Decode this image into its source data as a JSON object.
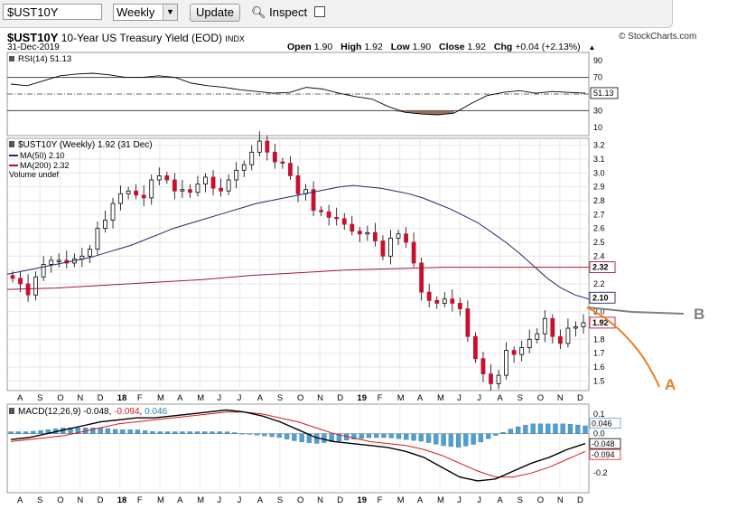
{
  "toolbar": {
    "symbol_value": "$UST10Y",
    "period_selected": "Weekly",
    "update_label": "Update",
    "inspect_label": "Inspect"
  },
  "header": {
    "symbol": "$UST10Y",
    "description": "10-Year US Treasury Yield (EOD)",
    "exchange": "INDX",
    "date": "31-Dec-2019",
    "watermark": "© StockCharts.com",
    "ohlc": [
      {
        "label": "Open",
        "value": "1.90"
      },
      {
        "label": "High",
        "value": "1.92"
      },
      {
        "label": "Low",
        "value": "1.90"
      },
      {
        "label": "Close",
        "value": "1.92"
      },
      {
        "label": "Chg",
        "value": "+0.04 (+2.13%)"
      }
    ],
    "up_marker": "▲"
  },
  "chart_data": [
    {
      "type": "line",
      "title": "RSI(14) 51.13",
      "indicator": "RSI(14)",
      "current_value": "51.13",
      "ylim": [
        0,
        100
      ],
      "ticks": [
        "90",
        "70",
        "50",
        "30",
        "10"
      ],
      "overbought": 70,
      "oversold": 30,
      "values": [
        62,
        60,
        66,
        72,
        74,
        75,
        73,
        70,
        70,
        72,
        70,
        63,
        60,
        58,
        55,
        53,
        51,
        52,
        58,
        56,
        51,
        47,
        44,
        35,
        28,
        26,
        25,
        27,
        38,
        48,
        52,
        54,
        51,
        53,
        52,
        51
      ]
    },
    {
      "type": "candlestick",
      "title": "$UST10Y (Weekly) 1.92 (31 Dec)",
      "legend": [
        "$UST10Y (Weekly) 1.92 (31 Dec)",
        "MA(50) 2.10",
        "MA(200) 2.32",
        "Volume undef"
      ],
      "x_tick_labels": [
        "A",
        "S",
        "O",
        "N",
        "D",
        "18",
        "F",
        "M",
        "A",
        "M",
        "J",
        "J",
        "A",
        "S",
        "O",
        "N",
        "D",
        "19",
        "F",
        "M",
        "A",
        "M",
        "J",
        "J",
        "A",
        "S",
        "O",
        "N",
        "D"
      ],
      "y_tick_labels": [
        "3.2",
        "3.1",
        "3.0",
        "2.9",
        "2.8",
        "2.7",
        "2.6",
        "2.5",
        "2.4",
        "2.3",
        "2.2",
        "2.1",
        "2.0",
        "1.9",
        "1.8",
        "1.7",
        "1.6",
        "1.5"
      ],
      "ylim": [
        1.43,
        3.25
      ],
      "price_label": "1.92",
      "ma50_label": "2.10",
      "ma200_label": "2.32",
      "close": [
        2.24,
        2.2,
        2.12,
        2.25,
        2.34,
        2.37,
        2.37,
        2.35,
        2.38,
        2.4,
        2.45,
        2.6,
        2.66,
        2.78,
        2.85,
        2.87,
        2.84,
        2.82,
        2.95,
        2.98,
        2.95,
        2.87,
        2.88,
        2.86,
        2.92,
        2.97,
        2.89,
        2.87,
        2.95,
        3.02,
        3.06,
        3.15,
        3.23,
        3.15,
        3.08,
        3.07,
        2.98,
        2.85,
        2.88,
        2.73,
        2.72,
        2.68,
        2.67,
        2.63,
        2.58,
        2.56,
        2.57,
        2.51,
        2.4,
        2.53,
        2.56,
        2.5,
        2.35,
        2.14,
        2.08,
        2.06,
        2.09,
        2.06,
        2.02,
        1.82,
        1.66,
        1.55,
        1.48,
        1.54,
        1.72,
        1.69,
        1.74,
        1.8,
        1.84,
        1.95,
        1.82,
        1.77,
        1.88,
        1.89,
        1.92
      ],
      "ma50": [
        2.27,
        2.29,
        2.31,
        2.33,
        2.35,
        2.37,
        2.39,
        2.42,
        2.45,
        2.48,
        2.52,
        2.56,
        2.6,
        2.63,
        2.66,
        2.69,
        2.72,
        2.75,
        2.78,
        2.8,
        2.82,
        2.84,
        2.86,
        2.88,
        2.9,
        2.91,
        2.9,
        2.89,
        2.87,
        2.85,
        2.82,
        2.78,
        2.74,
        2.69,
        2.64,
        2.57,
        2.5,
        2.42,
        2.33,
        2.24,
        2.17,
        2.12,
        2.09
      ],
      "ma200": [
        2.16,
        2.17,
        2.19,
        2.21,
        2.23,
        2.26,
        2.28,
        2.3,
        2.31,
        2.32,
        2.32,
        2.32,
        2.32
      ]
    },
    {
      "type": "bar",
      "title": "MACD(12,26,9) -0.048, -0.094, 0.046",
      "indicator": "MACD(12,26,9)",
      "macd_value": "-0.048",
      "signal_value": "-0.094",
      "histogram_value": "0.046",
      "ylim": [
        -0.3,
        0.15
      ],
      "ticks": [
        "0.1",
        "0.0",
        "-0.2"
      ],
      "current_labels": [
        "0.046",
        "-0.048",
        "-0.094"
      ],
      "x_tick_labels": [
        "A",
        "S",
        "O",
        "N",
        "D",
        "18",
        "F",
        "M",
        "A",
        "M",
        "J",
        "J",
        "A",
        "S",
        "O",
        "N",
        "D",
        "19",
        "F",
        "M",
        "A",
        "M",
        "J",
        "J",
        "A",
        "S",
        "O",
        "N",
        "D"
      ],
      "macd": [
        -0.03,
        -0.02,
        0.0,
        0.02,
        0.04,
        0.06,
        0.07,
        0.08,
        0.08,
        0.09,
        0.1,
        0.11,
        0.12,
        0.11,
        0.09,
        0.06,
        0.02,
        -0.02,
        -0.04,
        -0.05,
        -0.06,
        -0.07,
        -0.09,
        -0.12,
        -0.17,
        -0.22,
        -0.24,
        -0.23,
        -0.19,
        -0.15,
        -0.12,
        -0.08,
        -0.05
      ],
      "signal": [
        -0.04,
        -0.03,
        -0.02,
        -0.01,
        0.01,
        0.03,
        0.05,
        0.06,
        0.07,
        0.08,
        0.09,
        0.1,
        0.11,
        0.11,
        0.1,
        0.08,
        0.06,
        0.03,
        0.0,
        -0.02,
        -0.04,
        -0.05,
        -0.06,
        -0.08,
        -0.11,
        -0.15,
        -0.19,
        -0.22,
        -0.22,
        -0.2,
        -0.17,
        -0.13,
        -0.09
      ]
    }
  ],
  "annotations": {
    "label_a": "A",
    "label_b": "B",
    "color_a": "#ef7d22",
    "color_b": "#7f7f7f"
  },
  "colors": {
    "up_candle": "#ffffff",
    "down_candle": "#c8102e",
    "ma50": "#1f2a6b",
    "ma200": "#9b1b2e",
    "rsi_line": "#000000",
    "rsi_fill_low": "#9b6e63",
    "macd_line": "#000000",
    "signal_line": "#d8191c",
    "histogram": "#4f9fd0"
  }
}
